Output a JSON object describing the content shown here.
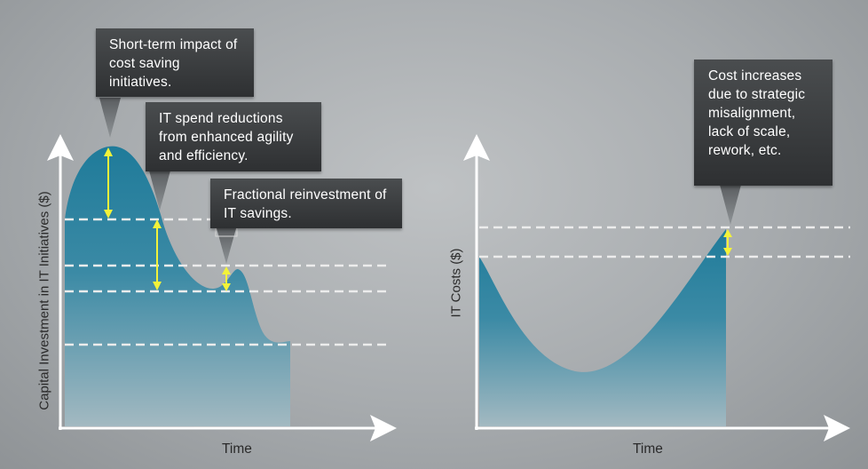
{
  "left_chart": {
    "xlabel": "Time",
    "ylabel": "Capital Investment in IT Initiatives ($)",
    "callouts": [
      {
        "text": "Short-term impact of cost saving initiatives."
      },
      {
        "text": "IT spend reductions from enhanced agility and efficiency."
      },
      {
        "text": "Fractional reinvestment of IT savings."
      }
    ]
  },
  "right_chart": {
    "xlabel": "Time",
    "ylabel": "IT Costs ($)",
    "callouts": [
      {
        "text": "Cost increases due to strategic misalignment, lack of scale, rework, etc."
      }
    ]
  },
  "colors": {
    "curve_fill_top": "#2a7f9c",
    "curve_fill_bottom": "#9eb6bf",
    "arrow": "#f2f23a",
    "axis": "#ffffff",
    "dashed": "#ececec"
  }
}
